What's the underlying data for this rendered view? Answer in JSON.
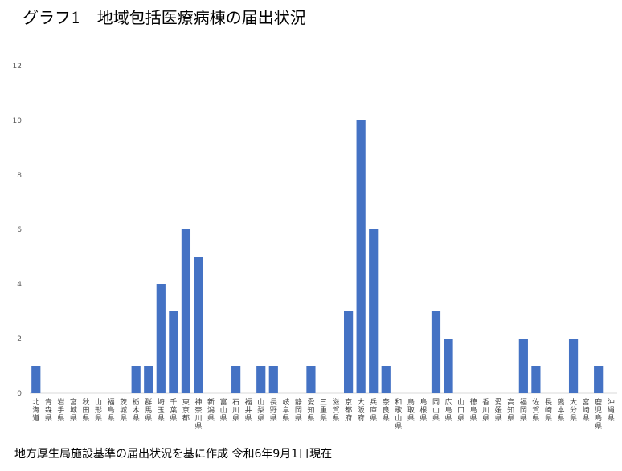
{
  "title": "グラフ1　地域包括医療病棟の届出状況",
  "footnote": "地方厚生局施設基準の届出状況を基に作成 令和6年9月1日現在",
  "chart_data": {
    "type": "bar",
    "color": "#4472C4",
    "ylim": [
      0,
      12
    ],
    "yticks": [
      0,
      2,
      4,
      6,
      8,
      10,
      12
    ],
    "grid": false,
    "categories": [
      "北海道",
      "青森県",
      "岩手県",
      "宮城県",
      "秋田県",
      "山形県",
      "福島県",
      "茨城県",
      "栃木県",
      "群馬県",
      "埼玉県",
      "千葉県",
      "東京都",
      "神奈川県",
      "新潟県",
      "富山県",
      "石川県",
      "福井県",
      "山梨県",
      "長野県",
      "岐阜県",
      "静岡県",
      "愛知県",
      "三重県",
      "滋賀県",
      "京都府",
      "大阪府",
      "兵庫県",
      "奈良県",
      "和歌山県",
      "鳥取県",
      "島根県",
      "岡山県",
      "広島県",
      "山口県",
      "徳島県",
      "香川県",
      "愛媛県",
      "高知県",
      "福岡県",
      "佐賀県",
      "長崎県",
      "熊本県",
      "大分県",
      "宮崎県",
      "鹿児島県",
      "沖縄県"
    ],
    "values": [
      1,
      0,
      0,
      0,
      0,
      0,
      0,
      0,
      1,
      1,
      4,
      3,
      6,
      5,
      0,
      0,
      1,
      0,
      1,
      1,
      0,
      0,
      1,
      0,
      0,
      3,
      10,
      6,
      1,
      0,
      0,
      0,
      3,
      2,
      0,
      0,
      0,
      0,
      0,
      2,
      1,
      0,
      0,
      2,
      0,
      1,
      0
    ]
  }
}
